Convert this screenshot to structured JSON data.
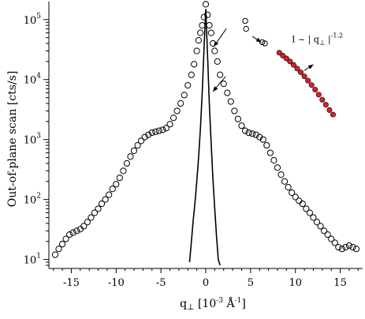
{
  "chart_data": {
    "type": "scatter",
    "xlabel": "q",
    "xlabel_sub": "⊥",
    "xlabel_unit": " [10",
    "xlabel_unit_exp": "-3",
    "xlabel_unit_mid": " Å",
    "xlabel_unit_exp2": "-1",
    "xlabel_unit_end": "]",
    "ylabel": "Out-of-plane scan [cts/s]",
    "xlim": [
      -17.5,
      17.5
    ],
    "ylim_log10": [
      0.85,
      5.3
    ],
    "yscale": "log",
    "x_ticks": [
      -15,
      -10,
      -5,
      0,
      5,
      10,
      15
    ],
    "x_tick_labels": [
      "-15",
      "-10",
      "-5",
      "0",
      "5",
      "10",
      "15"
    ],
    "y_ticks_exp": [
      1,
      2,
      3,
      4,
      5
    ],
    "y_tick_base": "10",
    "y_tick_exps": [
      "1",
      "2",
      "3",
      "4",
      "5"
    ],
    "series": [
      {
        "marker": "open-circle",
        "color": "#000000",
        "x": [
          -16.8,
          -16.4,
          -16.0,
          -15.6,
          -15.2,
          -14.8,
          -14.4,
          -14.0,
          -13.6,
          -13.2,
          -12.8,
          -12.4,
          -12.0,
          -11.6,
          -11.2,
          -10.8,
          -10.4,
          -10.0,
          -9.6,
          -9.2,
          -8.8,
          -8.4,
          -8.0,
          -7.6,
          -7.2,
          -6.8,
          -6.4,
          -6.0,
          -5.6,
          -5.2,
          -4.8,
          -4.4,
          -4.0,
          -3.6,
          -3.2,
          -2.8,
          -2.4,
          -2.0,
          -1.6,
          -1.3,
          -1.0,
          -0.8,
          -0.6,
          -0.4,
          -0.2,
          0.0,
          0.2,
          0.4,
          0.6,
          0.8,
          1.0,
          1.3,
          1.6,
          2.0,
          2.4,
          2.8,
          3.2,
          3.6,
          4.0,
          4.4,
          4.8,
          5.2,
          5.6,
          6.0,
          6.4,
          6.8,
          7.2,
          7.6,
          8.0,
          8.4,
          8.8,
          9.2,
          9.6,
          10.0,
          10.4,
          10.8,
          11.2,
          11.6,
          12.0,
          12.4,
          12.8,
          13.2,
          13.6,
          14.0,
          14.4,
          14.8,
          15.2,
          15.6,
          16.0,
          16.4,
          16.8
        ],
        "y": [
          12,
          15,
          18,
          22,
          26,
          28,
          30,
          32,
          36,
          42,
          50,
          60,
          70,
          85,
          100,
          120,
          150,
          180,
          230,
          300,
          400,
          520,
          650,
          800,
          950,
          1100,
          1200,
          1300,
          1350,
          1400,
          1450,
          1550,
          1800,
          2300,
          3000,
          4000,
          5500,
          8000,
          12000,
          18000,
          30000,
          45000,
          60000,
          80000,
          110000,
          180000,
          120000,
          80000,
          60000,
          40000,
          30000,
          20000,
          12000,
          8500,
          6000,
          4300,
          3000,
          2200,
          1700,
          1400,
          1300,
          1250,
          1200,
          1100,
          1000,
          800,
          600,
          450,
          340,
          260,
          200,
          160,
          130,
          110,
          95,
          85,
          70,
          60,
          50,
          42,
          36,
          30,
          26,
          22,
          19,
          16,
          15,
          16,
          17,
          16,
          15
        ]
      },
      {
        "name": "",
        "marker": "filled-circle",
        "color": "#d2232a",
        "x": [
          8.2,
          8.6,
          9.0,
          9.4,
          9.8,
          10.2,
          10.6,
          11.0,
          11.4,
          11.8,
          12.2,
          12.6,
          13.0,
          13.4,
          13.8,
          14.2
        ],
        "y": [
          28000,
          25000,
          22500,
          20000,
          17500,
          15200,
          13200,
          11300,
          9600,
          8100,
          6800,
          5600,
          4600,
          3800,
          3100,
          2600
        ]
      },
      {
        "name": "",
        "marker": "line",
        "color": "#000000",
        "x": [
          -1.8,
          -1.6,
          -1.4,
          -1.2,
          -1.0,
          -0.8,
          -0.6,
          -0.4,
          -0.2,
          0.0,
          0.2,
          0.4,
          0.6,
          0.8,
          1.0,
          1.2,
          1.4,
          1.6
        ],
        "y": [
          9,
          20,
          45,
          90,
          200,
          500,
          1500,
          6000,
          30000,
          150000,
          25000,
          4000,
          900,
          220,
          70,
          25,
          10,
          8
        ]
      }
    ],
    "extra_points": [
      {
        "x": 4.4,
        "y": 95000
      },
      {
        "x": 4.5,
        "y": 70000
      },
      {
        "x": 6.3,
        "y": 42000
      },
      {
        "x": 6.6,
        "y": 40000
      }
    ],
    "annotation": {
      "text_prefix": "I ~ | q",
      "text_sub": "⊥",
      "text_suffix": " |",
      "text_exp": "-1.2",
      "x": 9.6,
      "y_log10": 4.62
    },
    "arrows": [
      {
        "from_x": 2.3,
        "from_y_log10": 4.85,
        "to_x": 0.9,
        "to_y_log10": 4.55
      },
      {
        "from_x": 2.2,
        "from_y_log10": 4.05,
        "to_x": 0.8,
        "to_y_log10": 3.8
      },
      {
        "from_x": 5.2,
        "from_y_log10": 4.72,
        "to_x": 6.2,
        "to_y_log10": 4.62
      },
      {
        "from_x": 11.0,
        "from_y_log10": 4.15,
        "to_x": 12.0,
        "to_y_log10": 4.25
      }
    ]
  }
}
